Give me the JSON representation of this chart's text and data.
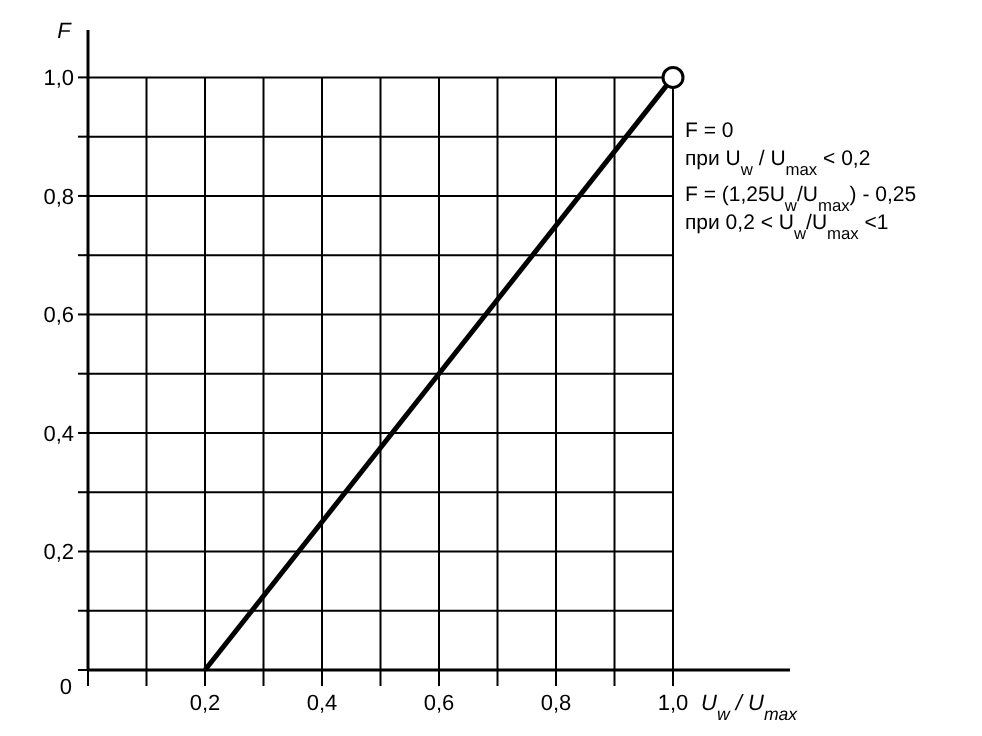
{
  "chart_data": {
    "type": "line",
    "xlabel": "U$_{w}$ / U$_{max}$",
    "ylabel": "F",
    "xlim": [
      0,
      1.2
    ],
    "ylim": [
      0,
      1.08
    ],
    "xticks": [
      {
        "value": 0,
        "label": null
      },
      {
        "value": 0.1,
        "label": null
      },
      {
        "value": 0.2,
        "label": "0,2"
      },
      {
        "value": 0.3,
        "label": null
      },
      {
        "value": 0.4,
        "label": "0,4"
      },
      {
        "value": 0.5,
        "label": null
      },
      {
        "value": 0.6,
        "label": "0,6"
      },
      {
        "value": 0.7,
        "label": null
      },
      {
        "value": 0.8,
        "label": "0,8"
      },
      {
        "value": 0.9,
        "label": null
      },
      {
        "value": 1.0,
        "label": "1,0"
      }
    ],
    "yticks": [
      0,
      {
        "value": 0.1,
        "label": null
      },
      {
        "value": 0.2,
        "label": "0,2"
      },
      {
        "value": 0.3,
        "label": null
      },
      {
        "value": 0.4,
        "label": "0,4"
      },
      {
        "value": 0.5,
        "label": null
      },
      {
        "value": 0.6,
        "label": "0,6"
      },
      {
        "value": 0.7,
        "label": null
      },
      {
        "value": 0.8,
        "label": "0,8"
      },
      {
        "value": 0.9,
        "label": null
      },
      {
        "value": 1.0,
        "label": "1,0"
      }
    ],
    "grid": true,
    "x": [
      0.2,
      1.0
    ],
    "series": [
      {
        "color": "#000000",
        "values": [
          0,
          1.0
        ],
        "marker": "none"
      },
      {
        "type": "scatter",
        "color": "#000000",
        "values": [
          null,
          1.0
        ],
        "marker": "circle"
      }
    ],
    "annotations": [
      "F = 0",
      "при U$_{w}$ / U$_{max}$ < 0,2",
      "F = (1,25U$_{w}$/U$_{max}$) - 0,25",
      "при 0,2 < U$_{w}$/U$_{max}$ <1"
    ]
  }
}
